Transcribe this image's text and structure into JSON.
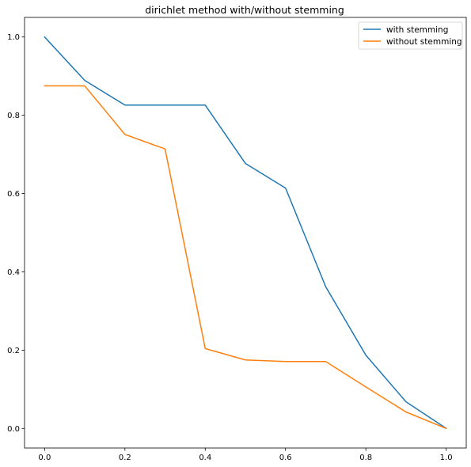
{
  "chart_data": {
    "type": "line",
    "title": "dirichlet method with/without stemming",
    "xlabel": "",
    "ylabel": "",
    "xlim": [
      -0.05,
      1.05
    ],
    "ylim": [
      -0.05,
      1.05
    ],
    "xticks": [
      "0.0",
      "0.2",
      "0.4",
      "0.6",
      "0.8",
      "1.0"
    ],
    "yticks": [
      "0.0",
      "0.2",
      "0.4",
      "0.6",
      "0.8",
      "1.0"
    ],
    "grid": false,
    "legend_position": "top-right",
    "x": [
      0.0,
      0.1,
      0.2,
      0.3,
      0.4,
      0.5,
      0.6,
      0.7,
      0.8,
      0.9,
      1.0
    ],
    "series": [
      {
        "name": "with stemming",
        "color": "#1f77b4",
        "values": [
          1.0,
          0.889,
          0.826,
          0.826,
          0.826,
          0.677,
          0.614,
          0.362,
          0.187,
          0.068,
          0.0
        ]
      },
      {
        "name": "without stemming",
        "color": "#ff7f0e",
        "values": [
          0.875,
          0.875,
          0.751,
          0.714,
          0.204,
          0.175,
          0.171,
          0.171,
          0.106,
          0.042,
          0.0
        ]
      }
    ]
  }
}
